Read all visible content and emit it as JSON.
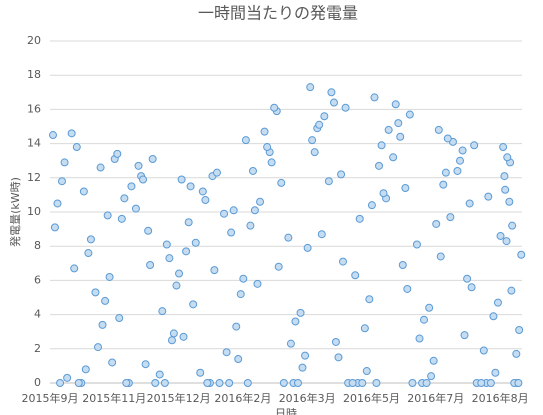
{
  "chart_data": {
    "type": "scatter",
    "title": "一時間当たりの発電量",
    "y_label": "発電量(kW時)",
    "x_label": "日時",
    "categories": [
      "2015年9月",
      "2015年11月",
      "2015年12月",
      "2016年2月",
      "2016年3月",
      "2016年5月",
      "2016年7月",
      "2016年8月"
    ],
    "values": [
      [
        14.5,
        13.8,
        12.6,
        0,
        11.2,
        9.8,
        0.3,
        8.4,
        13.1,
        6.7,
        2.1,
        10.5,
        0,
        4.8,
        12.9,
        7.6,
        1.2,
        14.6,
        5.3,
        9.1,
        0,
        3.4,
        11.8,
        0.8,
        6.2
      ],
      [
        13.4,
        12.1,
        0,
        10.8,
        8.9,
        2.5,
        11.5,
        0,
        6.4,
        12.7,
        4.2,
        9.6,
        1.1,
        7.3,
        0,
        13.1,
        5.7,
        10.2,
        0.5,
        3.8,
        11.9,
        8.1,
        0,
        6.9,
        2.9
      ],
      [
        11.9,
        10.7,
        0,
        9.4,
        12.1,
        3.3,
        8.2,
        0,
        6.1,
        11.2,
        1.8,
        7.7,
        0,
        10.1,
        4.6,
        12.3,
        5.2,
        0.6,
        9.9,
        2.7,
        0,
        8.8,
        11.5,
        6.6,
        1.4
      ],
      [
        14.2,
        13.5,
        0,
        12.4,
        15.9,
        4.1,
        10.6,
        0,
        7.9,
        13.8,
        2.3,
        9.2,
        16.1,
        0,
        5.8,
        11.7,
        1.6,
        14.7,
        8.5,
        0,
        12.9,
        3.6,
        10.1,
        6.8,
        0.9
      ],
      [
        17.3,
        16.4,
        0,
        14.9,
        12.2,
        3.2,
        15.6,
        0,
        10.4,
        17.0,
        6.3,
        13.5,
        1.5,
        0,
        8.7,
        16.1,
        4.9,
        11.8,
        0,
        14.2,
        2.4,
        9.6,
        15.1,
        7.1,
        0.7
      ],
      [
        16.7,
        15.2,
        0,
        13.9,
        11.4,
        4.4,
        14.8,
        0,
        9.3,
        16.3,
        2.6,
        12.7,
        6.9,
        0,
        10.8,
        15.7,
        1.3,
        13.2,
        8.1,
        0,
        14.4,
        3.7,
        11.1,
        5.5,
        0.4
      ],
      [
        14.8,
        13.6,
        0,
        12.3,
        10.5,
        3.9,
        14.1,
        0,
        8.6,
        13.0,
        1.9,
        11.6,
        6.1,
        0,
        9.7,
        13.9,
        4.7,
        12.4,
        0,
        7.4,
        2.8,
        10.9,
        14.3,
        5.6,
        0.6
      ],
      [
        13.8,
        12.9,
        0,
        11.3,
        9.2,
        3.1,
        13.2,
        0,
        7.5,
        10.6,
        1.7,
        12.1,
        5.4,
        0,
        8.3
      ]
    ],
    "color": "#5b9bd5",
    "fill": "#c6dcf1",
    "ylim": [
      0,
      20
    ],
    "yticks": [
      0,
      2,
      4,
      6,
      8,
      10,
      12,
      14,
      16,
      18,
      20
    ],
    "grid": true
  }
}
